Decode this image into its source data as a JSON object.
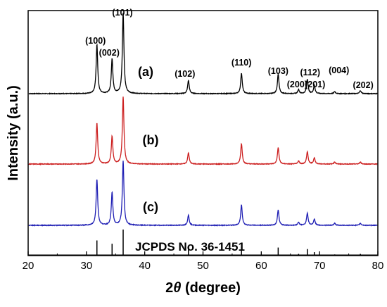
{
  "chart_data": {
    "type": "line",
    "xlabel_prefix": "2",
    "xlabel_symbol": "θ",
    "xlabel_suffix": " (degree)",
    "ylabel": "Intensity (a.u.)",
    "xlim": [
      20,
      80
    ],
    "xticks": [
      20,
      30,
      40,
      50,
      60,
      70,
      80
    ],
    "yticks_shown": false,
    "grid": false,
    "series": [
      {
        "label": "(a)",
        "color": "#000000",
        "peaks": [
          {
            "x": 31.8,
            "h": 0.48
          },
          {
            "x": 34.4,
            "h": 0.34
          },
          {
            "x": 36.3,
            "h": 0.79
          },
          {
            "x": 47.5,
            "h": 0.13
          },
          {
            "x": 56.6,
            "h": 0.2
          },
          {
            "x": 62.9,
            "h": 0.19
          },
          {
            "x": 66.4,
            "h": 0.04
          },
          {
            "x": 67.9,
            "h": 0.14
          },
          {
            "x": 69.1,
            "h": 0.08
          },
          {
            "x": 72.6,
            "h": 0.02
          },
          {
            "x": 77.0,
            "h": 0.03
          }
        ]
      },
      {
        "label": "(b)",
        "color": "#cc1f1f",
        "peaks": [
          {
            "x": 31.8,
            "h": 0.4
          },
          {
            "x": 34.4,
            "h": 0.27
          },
          {
            "x": 36.3,
            "h": 0.66
          },
          {
            "x": 47.5,
            "h": 0.11
          },
          {
            "x": 56.6,
            "h": 0.2
          },
          {
            "x": 62.9,
            "h": 0.16
          },
          {
            "x": 66.4,
            "h": 0.03
          },
          {
            "x": 67.9,
            "h": 0.12
          },
          {
            "x": 69.1,
            "h": 0.06
          },
          {
            "x": 72.6,
            "h": 0.02
          },
          {
            "x": 77.0,
            "h": 0.02
          }
        ]
      },
      {
        "label": "(c)",
        "color": "#1f1fb4",
        "peaks": [
          {
            "x": 31.8,
            "h": 0.45
          },
          {
            "x": 34.4,
            "h": 0.32
          },
          {
            "x": 36.3,
            "h": 0.63
          },
          {
            "x": 47.5,
            "h": 0.1
          },
          {
            "x": 56.6,
            "h": 0.2
          },
          {
            "x": 62.9,
            "h": 0.15
          },
          {
            "x": 66.4,
            "h": 0.03
          },
          {
            "x": 67.9,
            "h": 0.12
          },
          {
            "x": 69.1,
            "h": 0.06
          },
          {
            "x": 72.6,
            "h": 0.02
          },
          {
            "x": 77.0,
            "h": 0.02
          }
        ]
      }
    ],
    "peak_labels": [
      {
        "text": "(100)",
        "x": 31.8
      },
      {
        "text": "(002)",
        "x": 34.4
      },
      {
        "text": "(101)",
        "x": 36.3
      },
      {
        "text": "(102)",
        "x": 47.5
      },
      {
        "text": "(110)",
        "x": 56.6
      },
      {
        "text": "(103)",
        "x": 62.9
      },
      {
        "text": "(200)",
        "x": 66.4
      },
      {
        "text": "(112)",
        "x": 67.9
      },
      {
        "text": "(201)",
        "x": 69.1
      },
      {
        "text": "(004)",
        "x": 72.6
      },
      {
        "text": "(202)",
        "x": 77.0
      }
    ],
    "reference": {
      "label": "JCPDS No. 36-1451",
      "lines": [
        {
          "x": 31.8,
          "h": 0.57
        },
        {
          "x": 34.4,
          "h": 0.44
        },
        {
          "x": 36.3,
          "h": 1.0
        },
        {
          "x": 47.5,
          "h": 0.23
        },
        {
          "x": 56.6,
          "h": 0.32
        },
        {
          "x": 62.9,
          "h": 0.29
        },
        {
          "x": 66.4,
          "h": 0.04
        },
        {
          "x": 67.9,
          "h": 0.23
        },
        {
          "x": 69.1,
          "h": 0.11
        },
        {
          "x": 72.6,
          "h": 0.02
        },
        {
          "x": 77.0,
          "h": 0.04
        }
      ]
    }
  }
}
